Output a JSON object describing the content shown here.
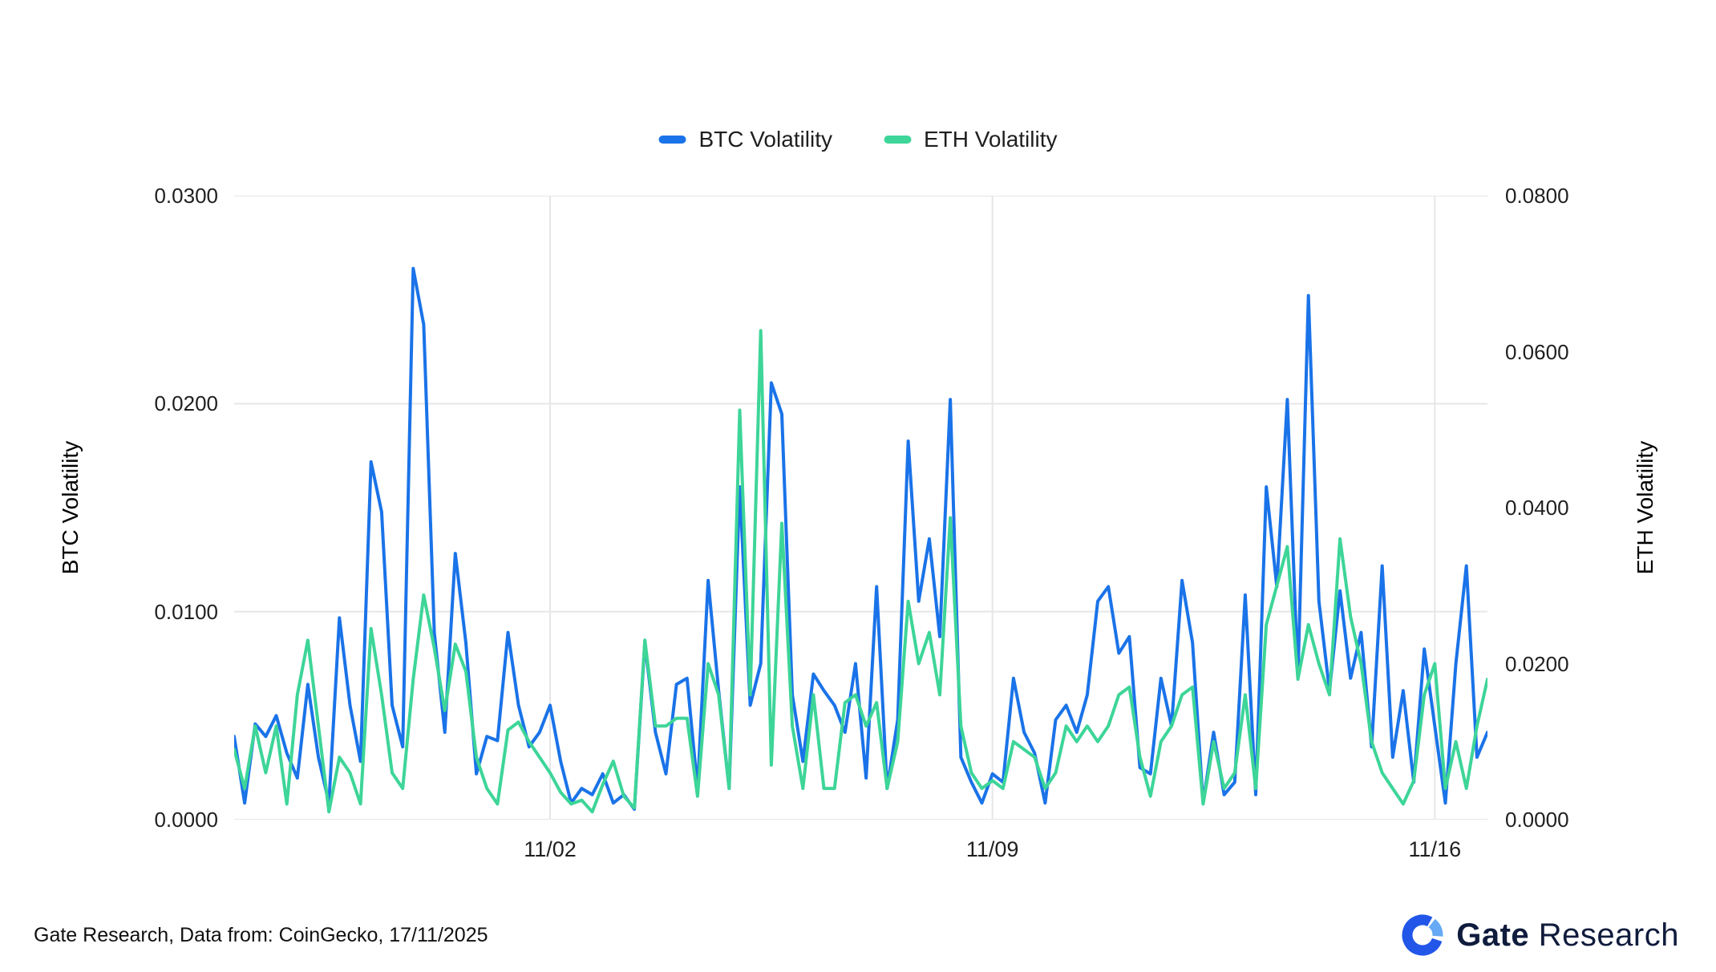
{
  "legend": {
    "items": [
      {
        "label": "BTC Volatility",
        "color": "#1a73e8"
      },
      {
        "label": "ETH Volatility",
        "color": "#3dd598"
      }
    ]
  },
  "footer": {
    "note": "Gate Research, Data from: CoinGecko, 17/11/2025",
    "brand_bold": "Gate",
    "brand_regular": "Research",
    "logo_dark_blue": "#2156e8",
    "logo_light_blue": "#66a9f4"
  },
  "chart_data": {
    "type": "line",
    "title": "",
    "left_axis": {
      "title": "BTC Volatility",
      "ticks": [
        "0.0000",
        "0.0100",
        "0.0200",
        "0.0300"
      ],
      "tick_values": [
        0.0,
        0.01,
        0.02,
        0.03
      ],
      "max": 0.03
    },
    "right_axis": {
      "title": "ETH Volatility",
      "ticks": [
        "0.0000",
        "0.0200",
        "0.0400",
        "0.0600",
        "0.0800"
      ],
      "tick_values": [
        0.0,
        0.02,
        0.04,
        0.06,
        0.08
      ],
      "max": 0.08
    },
    "x_tick_labels": [
      "11/02",
      "11/09",
      "11/16"
    ],
    "x_tick_indices": [
      30,
      72,
      114
    ],
    "grid": {
      "color": "#e6e6e6",
      "horizontal": true,
      "vertical_at_x_ticks": true
    },
    "legend_position": "top",
    "series": [
      {
        "name": "BTC Volatility",
        "axis": "left",
        "color": "#1a73e8",
        "values": [
          0.004,
          0.0008,
          0.0046,
          0.004,
          0.005,
          0.0032,
          0.002,
          0.0065,
          0.003,
          0.0008,
          0.0097,
          0.0055,
          0.0028,
          0.0172,
          0.0148,
          0.0055,
          0.0035,
          0.0265,
          0.0238,
          0.009,
          0.0042,
          0.0128,
          0.0085,
          0.0022,
          0.004,
          0.0038,
          0.009,
          0.0055,
          0.0035,
          0.0042,
          0.0055,
          0.0028,
          0.0008,
          0.0015,
          0.0012,
          0.0022,
          0.0008,
          0.0012,
          0.0005,
          0.0085,
          0.0042,
          0.0022,
          0.0065,
          0.0068,
          0.0015,
          0.0115,
          0.0062,
          0.0015,
          0.016,
          0.0055,
          0.0075,
          0.021,
          0.0195,
          0.006,
          0.0028,
          0.007,
          0.0062,
          0.0055,
          0.0042,
          0.0075,
          0.002,
          0.0112,
          0.0015,
          0.0048,
          0.0182,
          0.0105,
          0.0135,
          0.0088,
          0.0202,
          0.003,
          0.0018,
          0.0008,
          0.0022,
          0.0018,
          0.0068,
          0.0042,
          0.0032,
          0.0008,
          0.0048,
          0.0055,
          0.0042,
          0.006,
          0.0105,
          0.0112,
          0.008,
          0.0088,
          0.0025,
          0.0022,
          0.0068,
          0.0045,
          0.0115,
          0.0085,
          0.0008,
          0.0042,
          0.0012,
          0.0018,
          0.0108,
          0.0012,
          0.016,
          0.0112,
          0.0202,
          0.0068,
          0.0252,
          0.0105,
          0.0062,
          0.011,
          0.0068,
          0.009,
          0.0035,
          0.0122,
          0.003,
          0.0062,
          0.0018,
          0.0082,
          0.0045,
          0.0008,
          0.0075,
          0.0122,
          0.003,
          0.0042
        ]
      },
      {
        "name": "ETH Volatility",
        "axis": "right",
        "color": "#3dd598",
        "values": [
          0.009,
          0.004,
          0.012,
          0.006,
          0.012,
          0.002,
          0.016,
          0.023,
          0.012,
          0.001,
          0.008,
          0.006,
          0.002,
          0.0245,
          0.016,
          0.006,
          0.004,
          0.018,
          0.0288,
          0.022,
          0.014,
          0.0225,
          0.019,
          0.008,
          0.004,
          0.002,
          0.0115,
          0.0125,
          0.01,
          0.008,
          0.006,
          0.0035,
          0.002,
          0.0025,
          0.001,
          0.0045,
          0.0075,
          0.003,
          0.0015,
          0.023,
          0.012,
          0.012,
          0.013,
          0.013,
          0.003,
          0.02,
          0.016,
          0.004,
          0.0525,
          0.016,
          0.0627,
          0.007,
          0.038,
          0.012,
          0.004,
          0.016,
          0.004,
          0.004,
          0.015,
          0.016,
          0.012,
          0.015,
          0.004,
          0.01,
          0.028,
          0.02,
          0.024,
          0.016,
          0.0387,
          0.012,
          0.006,
          0.004,
          0.005,
          0.004,
          0.01,
          0.009,
          0.008,
          0.004,
          0.006,
          0.012,
          0.01,
          0.012,
          0.01,
          0.012,
          0.016,
          0.017,
          0.008,
          0.003,
          0.01,
          0.012,
          0.016,
          0.017,
          0.002,
          0.01,
          0.004,
          0.006,
          0.016,
          0.004,
          0.025,
          0.03,
          0.035,
          0.018,
          0.025,
          0.02,
          0.016,
          0.036,
          0.026,
          0.02,
          0.01,
          0.006,
          0.004,
          0.002,
          0.005,
          0.016,
          0.02,
          0.004,
          0.01,
          0.004,
          0.012,
          0.018
        ]
      }
    ]
  }
}
